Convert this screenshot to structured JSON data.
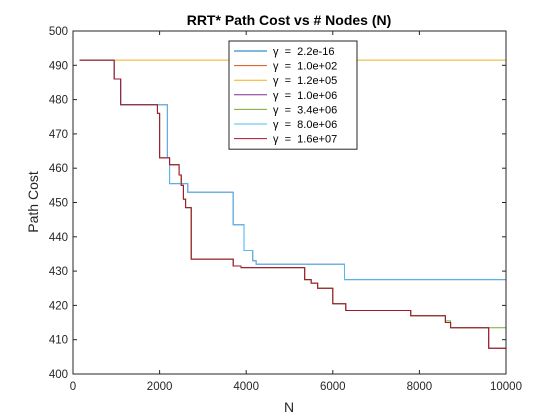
{
  "chart_data": {
    "type": "line",
    "title": "RRT* Path Cost vs # Nodes (N)",
    "xlabel": "N",
    "ylabel": "Path Cost",
    "xlim": [
      0,
      10000
    ],
    "ylim": [
      400,
      500
    ],
    "x_ticks": [
      0,
      2000,
      4000,
      6000,
      8000,
      10000
    ],
    "y_ticks": [
      400,
      410,
      420,
      430,
      440,
      450,
      460,
      470,
      480,
      490,
      500
    ],
    "grid": false,
    "legend_position": "top-center",
    "series": [
      {
        "name": "γ  =  2.2e-16",
        "color": "#0072BD",
        "points": [
          [
            150,
            491.5
          ],
          [
            950,
            491.5
          ],
          [
            950,
            486
          ],
          [
            1100,
            486
          ],
          [
            1100,
            478.5
          ],
          [
            1950,
            478.5
          ],
          [
            1950,
            476
          ],
          [
            2000,
            476
          ],
          [
            2000,
            463
          ],
          [
            2230,
            463
          ],
          [
            2230,
            461
          ],
          [
            2450,
            461
          ],
          [
            2450,
            458
          ],
          [
            2500,
            458
          ],
          [
            2500,
            455
          ],
          [
            2550,
            455
          ],
          [
            2550,
            451
          ],
          [
            2600,
            451
          ],
          [
            2600,
            448.5
          ],
          [
            2730,
            448.5
          ],
          [
            2730,
            433.5
          ],
          [
            3700,
            433.5
          ],
          [
            3700,
            431.5
          ],
          [
            3880,
            431.5
          ],
          [
            3880,
            431
          ],
          [
            5350,
            431
          ],
          [
            5350,
            427.5
          ],
          [
            5500,
            427.5
          ],
          [
            5500,
            426.5
          ],
          [
            5650,
            426.5
          ],
          [
            5650,
            425
          ],
          [
            6000,
            425
          ],
          [
            6000,
            420.5
          ],
          [
            6300,
            420.5
          ],
          [
            6300,
            418.5
          ],
          [
            7800,
            418.5
          ],
          [
            7800,
            417
          ],
          [
            8600,
            417
          ],
          [
            8600,
            415
          ],
          [
            8720,
            415
          ],
          [
            8720,
            413.5
          ],
          [
            9150,
            413.5
          ],
          [
            9150,
            413.5
          ],
          [
            9600,
            413.5
          ],
          [
            9600,
            407.5
          ],
          [
            10000,
            407.5
          ]
        ]
      },
      {
        "name": "γ  =  1.0e+02",
        "color": "#D95319",
        "points": [
          [
            150,
            491.5
          ],
          [
            950,
            491.5
          ],
          [
            950,
            486
          ],
          [
            1100,
            486
          ],
          [
            1100,
            478.5
          ],
          [
            1950,
            478.5
          ],
          [
            1950,
            476
          ],
          [
            2000,
            476
          ],
          [
            2000,
            463
          ],
          [
            2230,
            463
          ],
          [
            2230,
            461
          ],
          [
            2450,
            461
          ],
          [
            2450,
            458
          ],
          [
            2500,
            458
          ],
          [
            2500,
            455
          ],
          [
            2550,
            455
          ],
          [
            2550,
            451
          ],
          [
            2600,
            451
          ],
          [
            2600,
            448.5
          ],
          [
            2730,
            448.5
          ],
          [
            2730,
            433.5
          ],
          [
            3700,
            433.5
          ],
          [
            3700,
            431.5
          ],
          [
            3880,
            431.5
          ],
          [
            3880,
            431
          ],
          [
            5350,
            431
          ],
          [
            5350,
            427.5
          ],
          [
            5500,
            427.5
          ],
          [
            5500,
            426.5
          ],
          [
            5650,
            426.5
          ],
          [
            5650,
            425
          ],
          [
            6000,
            425
          ],
          [
            6000,
            420.5
          ],
          [
            6300,
            420.5
          ],
          [
            6300,
            418.5
          ],
          [
            7800,
            418.5
          ],
          [
            7800,
            417
          ],
          [
            8600,
            417
          ],
          [
            8600,
            415
          ],
          [
            8720,
            415
          ],
          [
            8720,
            413.5
          ],
          [
            9150,
            413.5
          ],
          [
            9150,
            413.5
          ],
          [
            9600,
            413.5
          ],
          [
            9600,
            407.5
          ],
          [
            10000,
            407.5
          ]
        ]
      },
      {
        "name": "γ  =  1.2e+05",
        "color": "#EDB120",
        "points": [
          [
            150,
            491.5
          ],
          [
            10000,
            491.5
          ]
        ]
      },
      {
        "name": "γ  =  1.0e+06",
        "color": "#7E2F8E",
        "points": [
          [
            150,
            491.5
          ],
          [
            950,
            491.5
          ],
          [
            950,
            486
          ],
          [
            1100,
            486
          ],
          [
            1100,
            478.5
          ],
          [
            2180,
            478.5
          ],
          [
            2180,
            463
          ],
          [
            2230,
            463
          ],
          [
            2230,
            455.5
          ],
          [
            2650,
            455.5
          ],
          [
            2650,
            453
          ],
          [
            3700,
            453
          ],
          [
            3700,
            443.5
          ],
          [
            3950,
            443.5
          ],
          [
            3950,
            436
          ],
          [
            4150,
            436
          ],
          [
            4150,
            433
          ],
          [
            4230,
            433
          ],
          [
            4230,
            432
          ],
          [
            6270,
            432
          ],
          [
            6270,
            427.5
          ],
          [
            10000,
            427.5
          ]
        ]
      },
      {
        "name": "γ  =  3.4e+06",
        "color": "#77AC30",
        "points": [
          [
            150,
            491.5
          ],
          [
            950,
            491.5
          ],
          [
            950,
            486
          ],
          [
            1100,
            486
          ],
          [
            1100,
            478.5
          ],
          [
            1950,
            478.5
          ],
          [
            1950,
            476
          ],
          [
            2000,
            476
          ],
          [
            2000,
            463
          ],
          [
            2230,
            463
          ],
          [
            2230,
            461
          ],
          [
            2450,
            461
          ],
          [
            2450,
            458
          ],
          [
            2500,
            458
          ],
          [
            2500,
            455
          ],
          [
            2550,
            455
          ],
          [
            2550,
            451
          ],
          [
            2600,
            451
          ],
          [
            2600,
            448.5
          ],
          [
            2730,
            448.5
          ],
          [
            2730,
            433.5
          ],
          [
            3700,
            433.5
          ],
          [
            3700,
            431.5
          ],
          [
            3880,
            431.5
          ],
          [
            3880,
            431
          ],
          [
            5350,
            431
          ],
          [
            5350,
            427.5
          ],
          [
            5500,
            427.5
          ],
          [
            5500,
            426.5
          ],
          [
            5650,
            426.5
          ],
          [
            5650,
            425
          ],
          [
            6000,
            425
          ],
          [
            6000,
            420.5
          ],
          [
            6300,
            420.5
          ],
          [
            6300,
            418.5
          ],
          [
            7800,
            418.5
          ],
          [
            7800,
            417
          ],
          [
            8600,
            417
          ],
          [
            8600,
            415.5
          ],
          [
            8720,
            415.5
          ],
          [
            8720,
            413.5
          ],
          [
            10000,
            413.5
          ]
        ]
      },
      {
        "name": "γ  =  8.0e+06",
        "color": "#4DBEEE",
        "points": [
          [
            150,
            491.5
          ],
          [
            950,
            491.5
          ],
          [
            950,
            486
          ],
          [
            1100,
            486
          ],
          [
            1100,
            478.5
          ],
          [
            2180,
            478.5
          ],
          [
            2180,
            463
          ],
          [
            2230,
            463
          ],
          [
            2230,
            455.5
          ],
          [
            2650,
            455.5
          ],
          [
            2650,
            453
          ],
          [
            3700,
            453
          ],
          [
            3700,
            443.5
          ],
          [
            3950,
            443.5
          ],
          [
            3950,
            436
          ],
          [
            4150,
            436
          ],
          [
            4150,
            433
          ],
          [
            4230,
            433
          ],
          [
            4230,
            432
          ],
          [
            6270,
            432
          ],
          [
            6270,
            427.5
          ],
          [
            10000,
            427.5
          ]
        ]
      },
      {
        "name": "γ  =  1.6e+07",
        "color": "#A2142F",
        "points": [
          [
            150,
            491.5
          ],
          [
            950,
            491.5
          ],
          [
            950,
            486
          ],
          [
            1100,
            486
          ],
          [
            1100,
            478.5
          ],
          [
            1950,
            478.5
          ],
          [
            1950,
            476
          ],
          [
            2000,
            476
          ],
          [
            2000,
            463
          ],
          [
            2230,
            463
          ],
          [
            2230,
            461
          ],
          [
            2450,
            461
          ],
          [
            2450,
            458
          ],
          [
            2500,
            458
          ],
          [
            2500,
            455
          ],
          [
            2550,
            455
          ],
          [
            2550,
            451
          ],
          [
            2600,
            451
          ],
          [
            2600,
            448.5
          ],
          [
            2730,
            448.5
          ],
          [
            2730,
            433.5
          ],
          [
            3700,
            433.5
          ],
          [
            3700,
            431.5
          ],
          [
            3880,
            431.5
          ],
          [
            3880,
            431
          ],
          [
            5350,
            431
          ],
          [
            5350,
            427.5
          ],
          [
            5500,
            427.5
          ],
          [
            5500,
            426.5
          ],
          [
            5650,
            426.5
          ],
          [
            5650,
            425
          ],
          [
            6000,
            425
          ],
          [
            6000,
            420.5
          ],
          [
            6300,
            420.5
          ],
          [
            6300,
            418.5
          ],
          [
            7800,
            418.5
          ],
          [
            7800,
            417
          ],
          [
            8600,
            417
          ],
          [
            8600,
            415
          ],
          [
            8720,
            415
          ],
          [
            8720,
            413.5
          ],
          [
            9600,
            413.5
          ],
          [
            9600,
            407.5
          ],
          [
            10000,
            407.5
          ]
        ]
      }
    ]
  }
}
